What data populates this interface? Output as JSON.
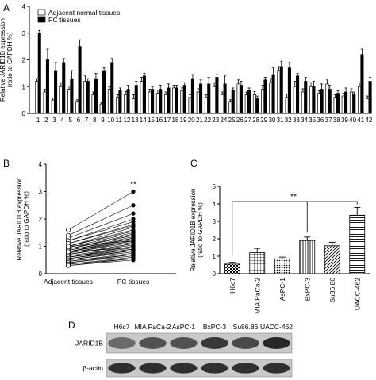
{
  "panels": {
    "A": "A",
    "B": "B",
    "C": "C",
    "D": "D"
  },
  "chart_data": [
    {
      "panel": "A",
      "type": "bar",
      "ylabel": "Relative JARID1B expression (ratio to GAPDH %)",
      "ylabel_lines": [
        "Relative JARID1B expression",
        "(ratio to GAPDH %)"
      ],
      "ylim": [
        0,
        4
      ],
      "yticks": [
        "0",
        "1",
        "2",
        "3",
        "4"
      ],
      "legend_position": "top-left",
      "categories": [
        "1",
        "2",
        "3",
        "4",
        "5",
        "6",
        "7",
        "8",
        "9",
        "10",
        "11",
        "12",
        "13",
        "14",
        "15",
        "16",
        "17",
        "18",
        "19",
        "20",
        "21",
        "22",
        "23",
        "24",
        "25",
        "26",
        "27",
        "28",
        "29",
        "30",
        "31",
        "32",
        "33",
        "34",
        "35",
        "36",
        "37",
        "38",
        "39",
        "40",
        "41",
        "42"
      ],
      "series": [
        {
          "name": "Adjacent normal tissues",
          "color": "#ffffff",
          "values": [
            1.2,
            0.8,
            0.5,
            1.0,
            0.9,
            0.45,
            1.2,
            0.7,
            0.35,
            0.9,
            0.6,
            0.7,
            0.55,
            1.2,
            0.8,
            0.75,
            0.7,
            0.95,
            0.85,
            0.6,
            0.8,
            0.6,
            1.0,
            0.7,
            0.45,
            1.1,
            0.7,
            0.7,
            0.9,
            1.15,
            1.6,
            0.6,
            1.0,
            0.8,
            1.0,
            0.75,
            1.1,
            0.6,
            0.65,
            0.8,
            1.0,
            0.55
          ],
          "errors": [
            0.1,
            0.1,
            0.08,
            0.15,
            0.12,
            0.06,
            0.2,
            0.1,
            0.06,
            0.1,
            0.1,
            0.12,
            0.15,
            0.15,
            0.1,
            0.12,
            0.1,
            0.1,
            0.1,
            0.1,
            0.12,
            0.1,
            0.15,
            0.1,
            0.06,
            0.15,
            0.1,
            0.12,
            0.15,
            0.15,
            0.15,
            0.12,
            0.2,
            0.12,
            0.15,
            0.1,
            0.15,
            0.1,
            0.1,
            0.12,
            0.15,
            0.1
          ]
        },
        {
          "name": "PC tissues",
          "color": "#000000",
          "values": [
            3.0,
            2.0,
            1.6,
            1.9,
            1.3,
            2.5,
            1.2,
            1.3,
            1.6,
            1.9,
            0.85,
            0.9,
            1.05,
            1.4,
            0.9,
            0.9,
            0.95,
            0.95,
            1.05,
            1.3,
            1.1,
            1.1,
            1.35,
            1.1,
            0.85,
            1.05,
            0.85,
            0.55,
            1.25,
            1.45,
            1.75,
            1.7,
            1.4,
            1.2,
            1.0,
            0.9,
            0.9,
            0.75,
            0.8,
            0.7,
            2.2,
            1.2
          ],
          "errors": [
            0.1,
            0.4,
            0.3,
            0.15,
            0.3,
            0.25,
            0.1,
            0.2,
            0.1,
            0.15,
            0.1,
            0.15,
            0.15,
            0.1,
            0.1,
            0.15,
            0.15,
            0.1,
            0.1,
            0.15,
            0.15,
            0.25,
            0.1,
            0.3,
            0.1,
            0.15,
            0.1,
            0.1,
            0.1,
            0.25,
            0.2,
            0.2,
            0.1,
            0.15,
            0.2,
            0.2,
            0.15,
            0.1,
            0.15,
            0.1,
            0.2,
            0.15
          ]
        }
      ]
    },
    {
      "panel": "B",
      "type": "scatter",
      "ylabel": "Relative JARID1B expression (ratio to GAPDH %)",
      "ylabel_lines": [
        "Relative JARID1B expression",
        "(ratio to GAPDH %)"
      ],
      "ylim": [
        0,
        4
      ],
      "yticks": [
        "0",
        "1",
        "2",
        "3",
        "4"
      ],
      "categories": [
        "Adjacent tissues",
        "PC tissues"
      ],
      "annotation": "**",
      "pairs": [
        [
          1.6,
          3.0
        ],
        [
          1.4,
          2.5
        ],
        [
          1.3,
          2.2
        ],
        [
          1.2,
          2.0
        ],
        [
          1.2,
          1.9
        ],
        [
          1.1,
          1.8
        ],
        [
          1.1,
          1.75
        ],
        [
          1.0,
          1.7
        ],
        [
          1.0,
          1.6
        ],
        [
          1.0,
          1.55
        ],
        [
          0.95,
          1.5
        ],
        [
          0.9,
          1.45
        ],
        [
          0.9,
          1.4
        ],
        [
          0.9,
          1.4
        ],
        [
          0.85,
          1.35
        ],
        [
          0.85,
          1.3
        ],
        [
          0.8,
          1.3
        ],
        [
          0.8,
          1.25
        ],
        [
          0.8,
          1.2
        ],
        [
          0.75,
          1.2
        ],
        [
          0.75,
          1.15
        ],
        [
          0.7,
          1.1
        ],
        [
          0.7,
          1.1
        ],
        [
          0.7,
          1.05
        ],
        [
          0.65,
          1.0
        ],
        [
          0.6,
          1.0
        ],
        [
          0.6,
          0.95
        ],
        [
          0.6,
          0.9
        ],
        [
          0.55,
          0.9
        ],
        [
          0.55,
          0.85
        ],
        [
          0.5,
          0.85
        ],
        [
          0.5,
          0.8
        ],
        [
          0.45,
          0.75
        ],
        [
          0.45,
          0.7
        ],
        [
          0.4,
          0.7
        ],
        [
          0.4,
          0.65
        ],
        [
          0.35,
          0.6
        ],
        [
          0.35,
          0.55
        ],
        [
          0.3,
          0.55
        ],
        [
          0.3,
          0.5
        ],
        [
          1.0,
          1.2
        ],
        [
          0.8,
          0.95
        ]
      ]
    },
    {
      "panel": "C",
      "type": "bar",
      "ylabel": "Relative JARID1B expression (ratio to GAPDH %)",
      "ylabel_lines": [
        "Relative JARID1B expression",
        "(ratio to GAPDH %)"
      ],
      "ylim": [
        0,
        5
      ],
      "yticks": [
        "0",
        "1",
        "2",
        "3",
        "4",
        "5"
      ],
      "categories": [
        "H6c7",
        "MIA PaCa-2",
        "AsPC-1",
        "BxPC-3",
        "Su86.86",
        "UACC-462"
      ],
      "values": [
        0.55,
        1.2,
        0.85,
        1.9,
        1.6,
        3.35
      ],
      "errors": [
        0.1,
        0.25,
        0.1,
        0.2,
        0.2,
        0.45
      ],
      "annotation": "**"
    }
  ],
  "blot": {
    "lanes": [
      "H6c7",
      "MIA PaCa-2",
      "AsPC-1",
      "BxPC-3",
      "Su86.86",
      "UACC-462"
    ],
    "rows": [
      {
        "label": "JARID1B",
        "intensities": [
          0.55,
          0.7,
          0.7,
          0.85,
          0.75,
          0.95
        ]
      },
      {
        "label": "β-actin",
        "intensities": [
          0.9,
          0.9,
          0.9,
          0.9,
          0.9,
          0.9
        ]
      }
    ]
  }
}
